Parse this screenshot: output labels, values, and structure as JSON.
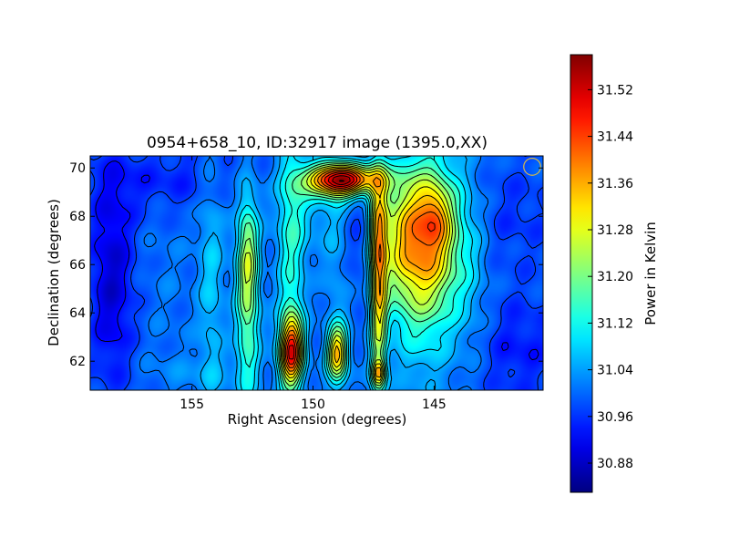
{
  "chart_data": {
    "type": "heatmap",
    "title": "0954+658_10, ID:32917 image (1395.0,XX)",
    "xlabel": "Right Ascension (degrees)",
    "ylabel": "Declination (degrees)",
    "xlim": [
      159.2,
      140.5
    ],
    "ylim": [
      60.8,
      70.5
    ],
    "x_ticks": [
      155,
      150,
      145
    ],
    "x_tick_labels": [
      "155",
      "150",
      "145"
    ],
    "y_ticks": [
      62,
      64,
      66,
      68,
      70
    ],
    "y_tick_labels": [
      "62",
      "64",
      "66",
      "68",
      "70"
    ],
    "colorbar": {
      "label": "Power in Kelvin",
      "range": [
        30.83,
        31.58
      ],
      "ticks": [
        30.88,
        30.96,
        31.04,
        31.12,
        31.2,
        31.28,
        31.36,
        31.44,
        31.52
      ],
      "tick_labels": [
        "30.88",
        "30.96",
        "31.04",
        "31.12",
        "31.20",
        "31.28",
        "31.36",
        "31.44",
        "31.52"
      ],
      "colormap": "jet"
    },
    "background_level": 30.99,
    "features": [
      {
        "ra": 158.3,
        "dec": 65.5,
        "sx": 0.6,
        "sy": 3.0,
        "amp": -0.1
      },
      {
        "ra": 156.0,
        "dec": 65.5,
        "sx": 0.8,
        "sy": 4.0,
        "amp": 0.02
      },
      {
        "ra": 154.2,
        "dec": 65.5,
        "sx": 0.4,
        "sy": 4.0,
        "amp": 0.08
      },
      {
        "ra": 152.7,
        "dec": 64.5,
        "sx": 0.35,
        "sy": 3.0,
        "amp": 0.2
      },
      {
        "ra": 152.7,
        "dec": 66.5,
        "sx": 0.3,
        "sy": 1.5,
        "amp": 0.1
      },
      {
        "ra": 150.9,
        "dec": 62.4,
        "sx": 0.35,
        "sy": 1.0,
        "amp": 0.43
      },
      {
        "ra": 150.9,
        "dec": 66.0,
        "sx": 0.4,
        "sy": 4.0,
        "amp": 0.13
      },
      {
        "ra": 150.1,
        "dec": 68.5,
        "sx": 1.0,
        "sy": 1.5,
        "amp": 0.06
      },
      {
        "ra": 149.0,
        "dec": 62.3,
        "sx": 0.3,
        "sy": 0.8,
        "amp": 0.33
      },
      {
        "ra": 148.8,
        "dec": 69.5,
        "sx": 1.0,
        "sy": 0.45,
        "amp": 0.55
      },
      {
        "ra": 149.0,
        "dec": 65.5,
        "sx": 0.4,
        "sy": 4.0,
        "amp": 0.05
      },
      {
        "ra": 148.0,
        "dec": 67.0,
        "sx": 0.7,
        "sy": 1.5,
        "amp": -0.04
      },
      {
        "ra": 147.3,
        "dec": 64.5,
        "sx": 0.25,
        "sy": 3.0,
        "amp": 0.25
      },
      {
        "ra": 147.3,
        "dec": 67.5,
        "sx": 0.3,
        "sy": 2.0,
        "amp": 0.17
      },
      {
        "ra": 147.3,
        "dec": 61.5,
        "sx": 0.2,
        "sy": 0.4,
        "amp": 0.22
      },
      {
        "ra": 146.5,
        "dec": 67.0,
        "sx": 0.6,
        "sy": 2.0,
        "amp": 0.13
      },
      {
        "ra": 145.3,
        "dec": 67.2,
        "sx": 0.95,
        "sy": 2.2,
        "amp": 0.38
      },
      {
        "ra": 144.9,
        "dec": 68.0,
        "sx": 0.4,
        "sy": 0.8,
        "amp": 0.1
      },
      {
        "ra": 145.5,
        "dec": 63.5,
        "sx": 1.0,
        "sy": 2.5,
        "amp": 0.07
      },
      {
        "ra": 143.5,
        "dec": 66.0,
        "sx": 0.6,
        "sy": 3.0,
        "amp": 0.05
      },
      {
        "ra": 142.0,
        "dec": 68.0,
        "sx": 1.5,
        "sy": 1.5,
        "amp": -0.03
      },
      {
        "ra": 141.5,
        "dec": 62.5,
        "sx": 1.2,
        "sy": 1.5,
        "amp": -0.05
      },
      {
        "ra": 154.5,
        "dec": 61.5,
        "sx": 1.5,
        "sy": 0.6,
        "amp": 0.03
      },
      {
        "ra": 156.0,
        "dec": 69.5,
        "sx": 2.0,
        "sy": 1.0,
        "amp": -0.05
      }
    ],
    "annotations": [
      {
        "type": "beam-circle",
        "ra": 140.95,
        "dec": 70.05,
        "radius_deg": 0.35,
        "color": "#d4b84a"
      }
    ],
    "grid": false
  }
}
